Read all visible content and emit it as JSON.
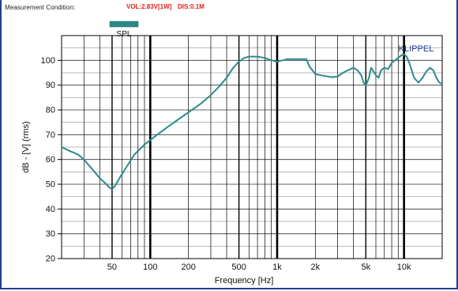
{
  "header": {
    "condition_label": "Measurement Condition:",
    "voltage": "VOL:2.83V[1W]",
    "distance": "DIS:0.1M"
  },
  "colors": {
    "curve": "#2e8b8b",
    "legend_swatch": "#2a8a8a",
    "grid_major": "#000000",
    "grid_minor": "#555555",
    "brand": "#1f3f8f",
    "header_value": "#e0201a"
  },
  "chart_data": {
    "type": "line",
    "xscale": "log",
    "ylabel": "dB - [V]  (rms)",
    "xlabel": "Frequency [Hz]",
    "brand": "KLIPPEL",
    "xlim": [
      20,
      20000
    ],
    "ylim": [
      20,
      110
    ],
    "yticks": [
      20,
      30,
      40,
      50,
      60,
      70,
      80,
      90,
      100
    ],
    "xticks": [
      {
        "value": 50,
        "label": "50"
      },
      {
        "value": 100,
        "label": "100"
      },
      {
        "value": 200,
        "label": "200"
      },
      {
        "value": 500,
        "label": "500"
      },
      {
        "value": 1000,
        "label": "1k"
      },
      {
        "value": 2000,
        "label": "2k"
      },
      {
        "value": 5000,
        "label": "5k"
      },
      {
        "value": 10000,
        "label": "10k"
      }
    ],
    "series": [
      {
        "name": "SPL",
        "x": [
          20,
          23,
          27,
          30,
          35,
          40,
          45,
          48,
          50,
          53,
          58,
          65,
          75,
          90,
          110,
          140,
          170,
          200,
          250,
          300,
          350,
          400,
          450,
          500,
          550,
          600,
          650,
          700,
          800,
          900,
          1000,
          1100,
          1200,
          1300,
          1400,
          1500,
          1700,
          1800,
          2000,
          2200,
          2500,
          2700,
          3000,
          3300,
          3600,
          4000,
          4300,
          4600,
          4800,
          5000,
          5300,
          5500,
          6000,
          6300,
          6600,
          7000,
          7500,
          8000,
          8500,
          9000,
          9500,
          10000,
          10500,
          11000,
          12000,
          13000,
          14000,
          15000,
          16000,
          17000,
          18000,
          19000,
          20000
        ],
        "y": [
          65,
          63.5,
          62,
          60,
          56,
          52.5,
          50,
          48.5,
          48,
          49.5,
          53,
          57,
          62,
          66,
          69.5,
          73.5,
          76.5,
          79,
          82.5,
          86,
          89.5,
          93,
          97,
          99.5,
          101,
          101.5,
          101.5,
          101.5,
          101,
          100,
          99.5,
          100,
          100.5,
          100.5,
          100.5,
          100.5,
          100.5,
          97.5,
          94.5,
          94,
          93.5,
          93.2,
          93.5,
          95,
          96,
          97,
          96,
          94,
          91,
          90,
          93,
          97,
          94,
          93,
          96,
          97,
          96.5,
          99,
          100,
          101,
          102,
          102.5,
          101.5,
          99,
          93,
          91,
          93,
          95.5,
          97,
          96,
          93,
          91,
          90.5
        ]
      }
    ]
  }
}
